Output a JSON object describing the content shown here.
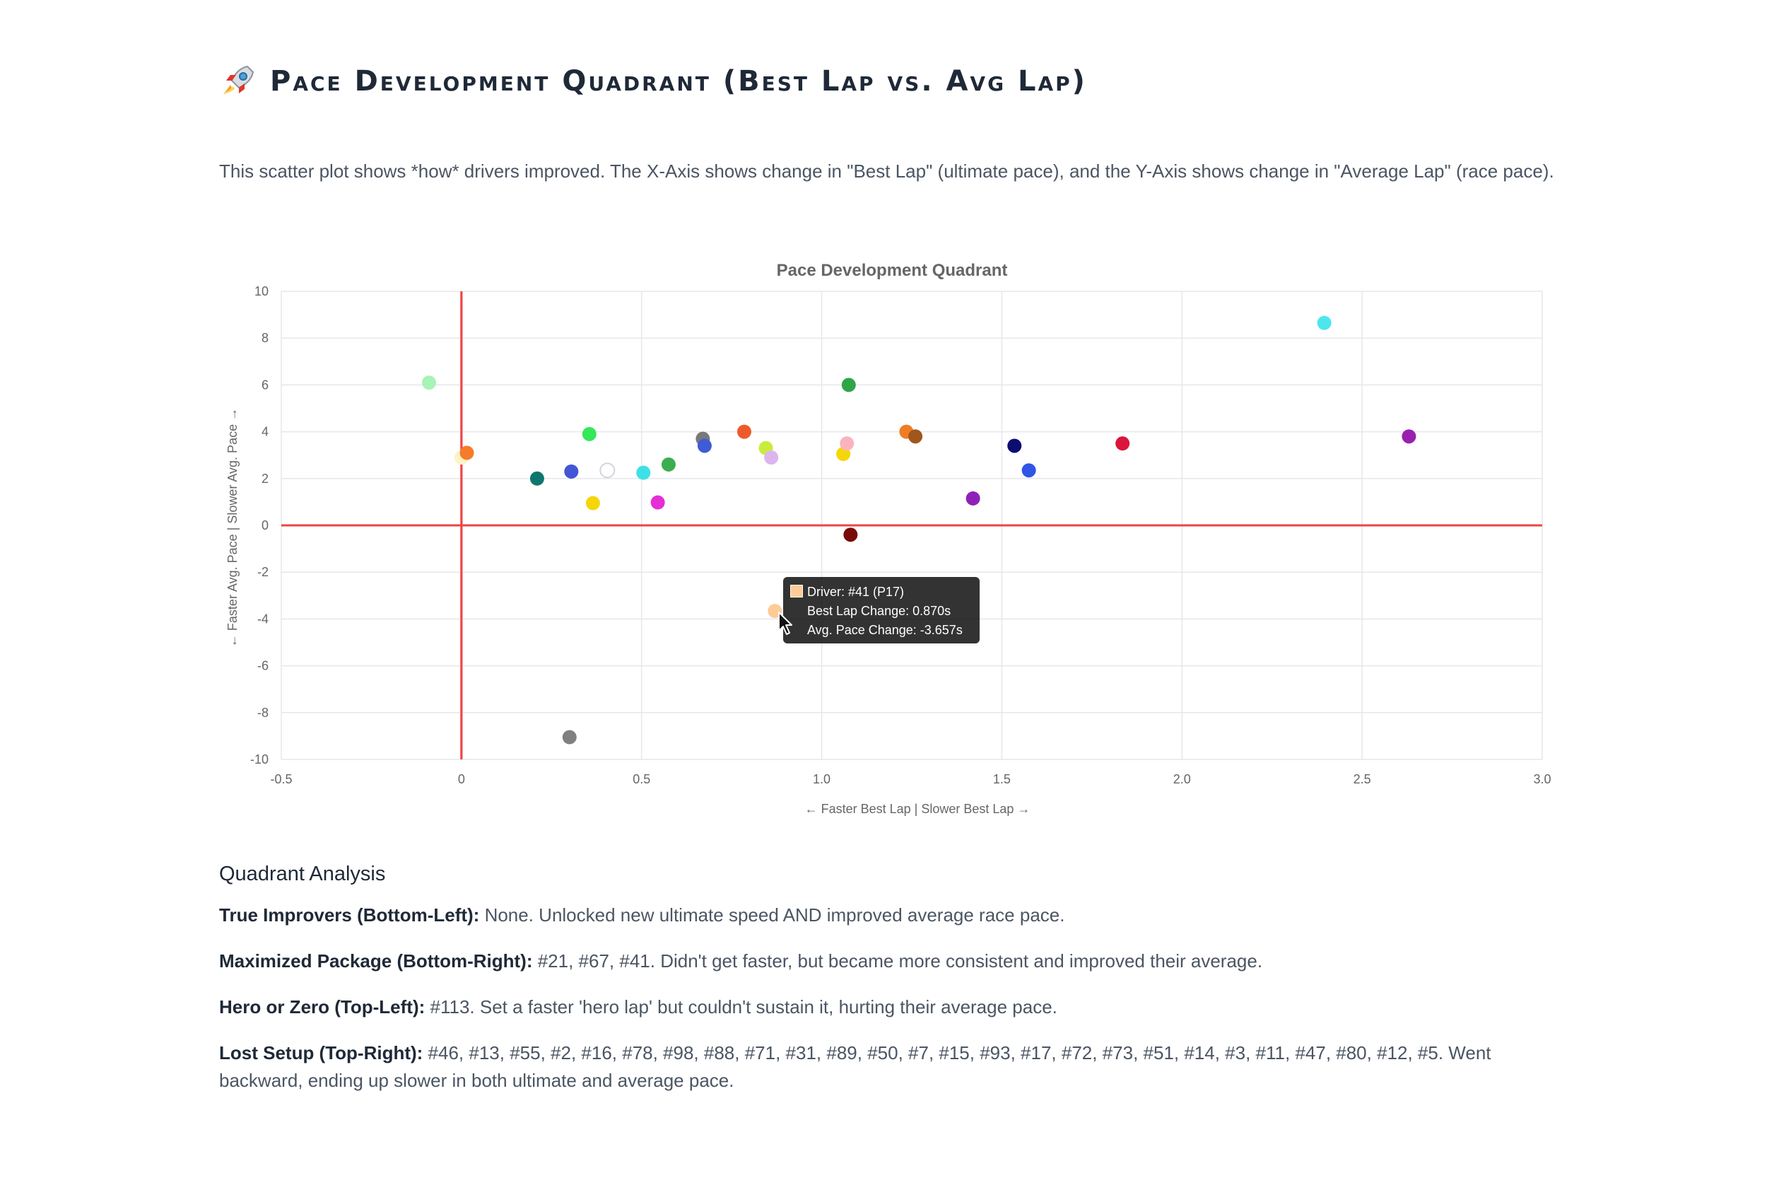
{
  "header": {
    "title": "Pace Development Quadrant (Best Lap vs. Avg Lap)",
    "icon": "rocket-icon",
    "intro": "This scatter plot shows *how* drivers improved. The X-Axis shows change in \"Best Lap\" (ultimate pace), and the Y-Axis shows change in \"Average Lap\" (race pace)."
  },
  "chart_data": {
    "type": "scatter",
    "title": "Pace Development Quadrant",
    "xlabel": "← Faster Best Lap | Slower Best Lap →",
    "ylabel": "← Faster Avg. Pace | Slower Avg. Pace →",
    "xlim": [
      -0.5,
      3.0
    ],
    "ylim": [
      -10,
      10
    ],
    "xticks": [
      "-0.5",
      "0",
      "0.5",
      "1.0",
      "1.5",
      "2.0",
      "2.5",
      "3.0"
    ],
    "xtick_values": [
      -0.5,
      0,
      0.5,
      1.0,
      1.5,
      2.0,
      2.5,
      3.0
    ],
    "yticks": [
      "10",
      "8",
      "6",
      "4",
      "2",
      "0",
      "-2",
      "-4",
      "-6",
      "-8",
      "-10"
    ],
    "ytick_values": [
      10,
      8,
      6,
      4,
      2,
      0,
      -2,
      -4,
      -6,
      -8,
      -10
    ],
    "grid": true,
    "zero_lines_color": "#ef4444",
    "points": [
      {
        "x": -0.09,
        "y": 6.1,
        "color": "#a7f3b8"
      },
      {
        "x": 0.0,
        "y": 2.9,
        "color": "#fef3c7"
      },
      {
        "x": 0.015,
        "y": 3.1,
        "color": "#f57c2a"
      },
      {
        "x": 0.21,
        "y": 2.0,
        "color": "#0f766e"
      },
      {
        "x": 0.305,
        "y": 2.3,
        "color": "#4356d6"
      },
      {
        "x": 0.355,
        "y": 3.9,
        "color": "#34e85a"
      },
      {
        "x": 0.365,
        "y": 0.95,
        "color": "#f5d60a"
      },
      {
        "x": 0.405,
        "y": 2.35,
        "color": "#ffffff",
        "stroke": "#d1d5db"
      },
      {
        "x": 0.505,
        "y": 2.25,
        "color": "#3ee0e8"
      },
      {
        "x": 0.545,
        "y": 0.98,
        "color": "#e62ed6"
      },
      {
        "x": 0.575,
        "y": 2.6,
        "color": "#3cae4f"
      },
      {
        "x": 0.67,
        "y": 3.7,
        "color": "#787878"
      },
      {
        "x": 0.675,
        "y": 3.4,
        "color": "#3f5bd6"
      },
      {
        "x": 0.785,
        "y": 4.0,
        "color": "#ef5a2c"
      },
      {
        "x": 0.845,
        "y": 3.3,
        "color": "#c9ec3c"
      },
      {
        "x": 0.86,
        "y": 2.9,
        "color": "#dcb5ef"
      },
      {
        "x": 0.87,
        "y": -3.657,
        "color": "#fdcb98"
      },
      {
        "x": 1.06,
        "y": 3.05,
        "color": "#f5d60a"
      },
      {
        "x": 1.07,
        "y": 3.5,
        "color": "#f9b4bf"
      },
      {
        "x": 1.075,
        "y": 6.0,
        "color": "#2fa548"
      },
      {
        "x": 1.08,
        "y": -0.4,
        "color": "#7a0a0a"
      },
      {
        "x": 1.235,
        "y": 4.0,
        "color": "#f07d26"
      },
      {
        "x": 1.26,
        "y": 3.8,
        "color": "#a0561c"
      },
      {
        "x": 1.42,
        "y": 1.15,
        "color": "#8e22b8"
      },
      {
        "x": 1.535,
        "y": 3.4,
        "color": "#0b0d72"
      },
      {
        "x": 1.575,
        "y": 2.35,
        "color": "#2f56e6"
      },
      {
        "x": 1.835,
        "y": 3.5,
        "color": "#dc143c"
      },
      {
        "x": 2.395,
        "y": 8.65,
        "color": "#4ee6ee"
      },
      {
        "x": 2.63,
        "y": 3.8,
        "color": "#9a20b0"
      },
      {
        "x": 0.3,
        "y": -9.05,
        "color": "#808080"
      }
    ],
    "tooltip": {
      "driver": "Driver: #41 (P17)",
      "best": "Best Lap Change: 0.870s",
      "avg": "Avg. Pace Change: -3.657s"
    }
  },
  "analysis": {
    "heading": "Quadrant Analysis",
    "items": [
      {
        "label": "True Improvers (Bottom-Left):",
        "text": " None. Unlocked new ultimate speed AND improved average race pace."
      },
      {
        "label": "Maximized Package (Bottom-Right):",
        "text": " #21, #67, #41. Didn't get faster, but became more consistent and improved their average."
      },
      {
        "label": "Hero or Zero (Top-Left):",
        "text": " #113. Set a faster 'hero lap' but couldn't sustain it, hurting their average pace."
      },
      {
        "label": "Lost Setup (Top-Right):",
        "text": " #46, #13, #55, #2, #16, #78, #98, #88, #71, #31, #89, #50, #7, #15, #93, #17, #72, #73, #51, #14, #3, #11, #47, #80, #12, #5. Went backward, ending up slower in both ultimate and average pace."
      }
    ]
  }
}
